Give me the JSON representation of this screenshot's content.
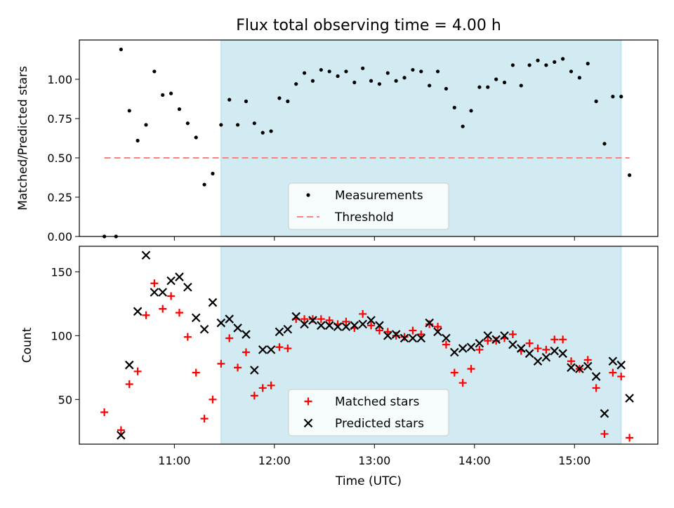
{
  "title": "Flux total observing time = 4.00 h",
  "xlabel": "Time (UTC)",
  "x_ticks": [
    "11:00",
    "12:00",
    "13:00",
    "14:00",
    "15:00"
  ],
  "colors": {
    "shade": "#add8e6",
    "threshold": "#ff7f7f",
    "measurement": "#000000",
    "matched": "#ff0000",
    "predicted": "#000000"
  },
  "chart_data": [
    {
      "type": "scatter",
      "ylabel": "Matched/Predicted stars",
      "ylim": [
        0,
        1.25
      ],
      "y_ticks": [
        "0.00",
        "0.25",
        "0.50",
        "0.75",
        "1.00"
      ],
      "xlim": [
        "10:03",
        "15:50"
      ],
      "shaded_interval": [
        "11:28",
        "15:28"
      ],
      "legend": {
        "position": "lower center",
        "entries": [
          "Measurements",
          "Threshold"
        ]
      },
      "threshold": {
        "name": "Threshold",
        "value": 0.5,
        "x_range": [
          "10:18",
          "15:33"
        ]
      },
      "series": [
        {
          "name": "Measurements",
          "marker": "dot",
          "x": [
            "10:18",
            "10:25",
            "10:28",
            "10:33",
            "10:38",
            "10:43",
            "10:48",
            "10:53",
            "10:58",
            "11:03",
            "11:08",
            "11:13",
            "11:18",
            "11:23",
            "11:28",
            "11:33",
            "11:38",
            "11:43",
            "11:48",
            "11:53",
            "11:58",
            "12:03",
            "12:08",
            "12:13",
            "12:18",
            "12:23",
            "12:28",
            "12:33",
            "12:38",
            "12:43",
            "12:48",
            "12:53",
            "12:58",
            "13:03",
            "13:08",
            "13:13",
            "13:18",
            "13:23",
            "13:28",
            "13:33",
            "13:38",
            "13:43",
            "13:48",
            "13:53",
            "13:58",
            "14:03",
            "14:08",
            "14:13",
            "14:18",
            "14:23",
            "14:28",
            "14:33",
            "14:38",
            "14:43",
            "14:48",
            "14:53",
            "14:58",
            "15:03",
            "15:08",
            "15:13",
            "15:18",
            "15:23",
            "15:28",
            "15:33"
          ],
          "y": [
            0.0,
            0.0,
            1.19,
            0.8,
            0.61,
            0.71,
            1.05,
            0.9,
            0.91,
            0.81,
            0.72,
            0.63,
            0.33,
            0.4,
            0.71,
            0.87,
            0.71,
            0.86,
            0.72,
            0.66,
            0.67,
            0.88,
            0.86,
            0.97,
            1.04,
            0.99,
            1.06,
            1.05,
            1.02,
            1.05,
            0.98,
            1.07,
            0.99,
            0.97,
            1.04,
            0.99,
            1.01,
            1.06,
            1.05,
            0.96,
            1.05,
            0.94,
            0.82,
            0.7,
            0.8,
            0.95,
            0.95,
            1.0,
            0.98,
            1.09,
            0.96,
            1.09,
            1.12,
            1.09,
            1.11,
            1.13,
            1.05,
            1.01,
            1.1,
            0.86,
            0.59,
            0.89,
            0.89,
            0.39
          ]
        }
      ]
    },
    {
      "type": "scatter",
      "ylabel": "Count",
      "ylim": [
        15,
        170
      ],
      "y_ticks": [
        "50",
        "100",
        "150"
      ],
      "xlim": [
        "10:03",
        "15:50"
      ],
      "shaded_interval": [
        "11:28",
        "15:28"
      ],
      "legend": {
        "position": "lower center",
        "entries": [
          "Matched stars",
          "Predicted stars"
        ]
      },
      "series": [
        {
          "name": "Matched stars",
          "marker": "plus",
          "x": [
            "10:18",
            "10:28",
            "10:33",
            "10:38",
            "10:43",
            "10:48",
            "10:53",
            "10:58",
            "11:03",
            "11:08",
            "11:13",
            "11:18",
            "11:23",
            "11:28",
            "11:33",
            "11:38",
            "11:43",
            "11:48",
            "11:53",
            "11:58",
            "12:03",
            "12:08",
            "12:13",
            "12:18",
            "12:23",
            "12:28",
            "12:33",
            "12:38",
            "12:43",
            "12:48",
            "12:53",
            "12:58",
            "13:03",
            "13:08",
            "13:13",
            "13:18",
            "13:23",
            "13:28",
            "13:33",
            "13:38",
            "13:43",
            "13:48",
            "13:53",
            "13:58",
            "14:03",
            "14:08",
            "14:13",
            "14:18",
            "14:23",
            "14:28",
            "14:33",
            "14:38",
            "14:43",
            "14:48",
            "14:53",
            "14:58",
            "15:03",
            "15:08",
            "15:13",
            "15:18",
            "15:23",
            "15:28",
            "15:33"
          ],
          "y": [
            40,
            26,
            62,
            72,
            116,
            141,
            121,
            131,
            118,
            99,
            71,
            35,
            50,
            78,
            98,
            75,
            87,
            53,
            59,
            61,
            91,
            90,
            113,
            113,
            113,
            113,
            112,
            109,
            111,
            106,
            117,
            108,
            104,
            103,
            100,
            99,
            104,
            101,
            109,
            107,
            93,
            71,
            63,
            74,
            89,
            96,
            96,
            98,
            101,
            88,
            94,
            90,
            89,
            97,
            97,
            80,
            74,
            81,
            59,
            23,
            71,
            68,
            20
          ]
        },
        {
          "name": "Predicted stars",
          "marker": "cross",
          "x": [
            "10:28",
            "10:33",
            "10:38",
            "10:43",
            "10:48",
            "10:53",
            "10:58",
            "11:03",
            "11:08",
            "11:13",
            "11:18",
            "11:23",
            "11:28",
            "11:33",
            "11:38",
            "11:43",
            "11:48",
            "11:53",
            "11:58",
            "12:03",
            "12:08",
            "12:13",
            "12:18",
            "12:23",
            "12:28",
            "12:33",
            "12:38",
            "12:43",
            "12:48",
            "12:53",
            "12:58",
            "13:03",
            "13:08",
            "13:13",
            "13:18",
            "13:23",
            "13:28",
            "13:33",
            "13:38",
            "13:43",
            "13:48",
            "13:53",
            "13:58",
            "14:03",
            "14:08",
            "14:13",
            "14:18",
            "14:23",
            "14:28",
            "14:33",
            "14:38",
            "14:43",
            "14:48",
            "14:53",
            "14:58",
            "15:03",
            "15:08",
            "15:13",
            "15:18",
            "15:23",
            "15:28",
            "15:33"
          ],
          "y": [
            22,
            77,
            119,
            163,
            134,
            134,
            143,
            146,
            138,
            114,
            105,
            126,
            110,
            113,
            106,
            101,
            73,
            89,
            89,
            103,
            105,
            115,
            109,
            112,
            108,
            108,
            107,
            107,
            108,
            109,
            112,
            108,
            100,
            101,
            98,
            98,
            98,
            110,
            103,
            98,
            87,
            90,
            91,
            94,
            100,
            97,
            100,
            93,
            90,
            86,
            80,
            83,
            88,
            86,
            75,
            74,
            76,
            68,
            39,
            80,
            77,
            51
          ]
        }
      ]
    }
  ]
}
